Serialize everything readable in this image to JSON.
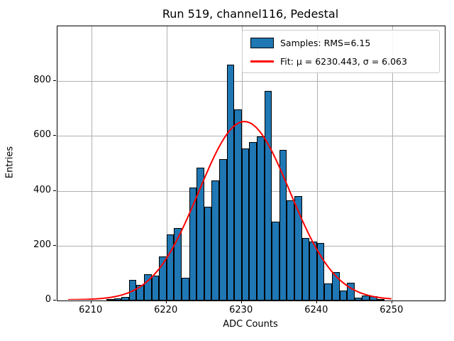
{
  "chart_data": {
    "type": "bar",
    "title": "Run 519, channel116, Pedestal",
    "xlabel": "ADC Counts",
    "ylabel": "Entries",
    "xlim": [
      6205.5,
      6257.0
    ],
    "ylim": [
      0,
      1000
    ],
    "xticks": [
      6210,
      6220,
      6230,
      6240,
      6250
    ],
    "yticks": [
      0,
      200,
      400,
      600,
      800
    ],
    "grid": true,
    "bar_color": "#1f77b4",
    "bar_edge_color": "#000000",
    "bin_width": 1,
    "bin_left_edges": [
      6212,
      6213,
      6214,
      6215,
      6216,
      6217,
      6218,
      6219,
      6220,
      6221,
      6222,
      6223,
      6224,
      6225,
      6226,
      6227,
      6228,
      6229,
      6230,
      6231,
      6232,
      6233,
      6234,
      6235,
      6236,
      6237,
      6238,
      6239,
      6240,
      6241,
      6242,
      6243,
      6244,
      6245,
      6246,
      6247,
      6248
    ],
    "counts": [
      4,
      8,
      13,
      76,
      57,
      96,
      90,
      160,
      240,
      265,
      83,
      412,
      485,
      341,
      438,
      515,
      860,
      697,
      555,
      578,
      598,
      765,
      288,
      550,
      365,
      380,
      228,
      215,
      210,
      61,
      103,
      35,
      65,
      10,
      19,
      16,
      5
    ],
    "fit": {
      "mu": 6230.443,
      "sigma": 6.063,
      "amplitude": 650,
      "x_start": 6207,
      "x_end": 6250,
      "color": "#ff0000"
    },
    "legend": {
      "position": "upper right",
      "entries": [
        {
          "type": "patch",
          "color": "#1f77b4",
          "label": "Samples: RMS=6.15"
        },
        {
          "type": "line",
          "color": "#ff0000",
          "label": "Fit: μ = 6230.443, σ = 6.063"
        }
      ]
    }
  }
}
